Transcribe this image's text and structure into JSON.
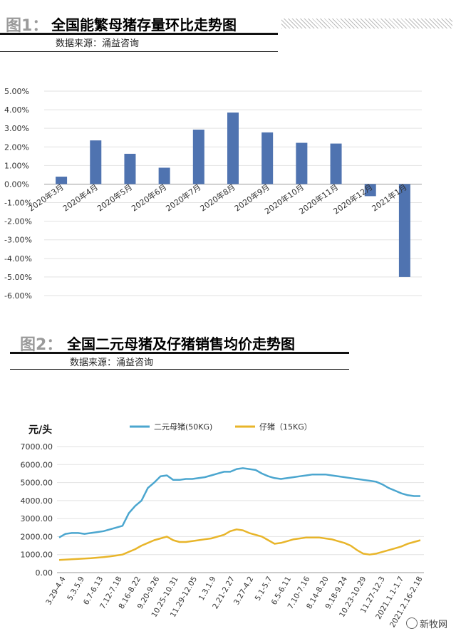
{
  "figure1": {
    "number": "图1：",
    "title": "全国能繁母猪存量环比走势图",
    "source": "数据来源：涌益咨询"
  },
  "figure2": {
    "number": "图2：",
    "title": "全国二元母猪及仔猪销售均价走势图",
    "source": "数据来源：涌益咨询"
  },
  "watermark": "新牧网",
  "chart_data": [
    {
      "type": "bar",
      "categories": [
        "2020年3月",
        "2020年4月",
        "2020年5月",
        "2020年6月",
        "2020年7月",
        "2020年8月",
        "2020年9月",
        "2020年10月",
        "2020年11月",
        "2020年12月",
        "2021年1月"
      ],
      "series": [
        {
          "values": [
            0.4,
            2.35,
            1.63,
            0.88,
            2.93,
            3.85,
            2.78,
            2.22,
            2.18,
            -0.65,
            -5.0
          ]
        }
      ],
      "yticks": [
        "5.00%",
        "4.00%",
        "3.00%",
        "2.00%",
        "1.00%",
        "0.00%",
        "-1.00%",
        "-2.00%",
        "-3.00%",
        "-4.00%",
        "-5.00%",
        "-6.00%"
      ],
      "ylim": [
        -6,
        5
      ],
      "unit": "%",
      "color": "#4f73b0",
      "grid": true
    },
    {
      "type": "line",
      "ylabel": "元/头",
      "ylim": [
        0,
        7000
      ],
      "yticks": [
        "7000.00",
        "6000.00",
        "5000.00",
        "4000.00",
        "3000.00",
        "2000.00",
        "1000.00",
        "0.00"
      ],
      "x_tick_labels": [
        "3.29-4.4",
        "5.3.5.9",
        "6.7-6.13",
        "7.12-7.18",
        "8.16-8.22",
        "9.20-9.26",
        "10.25-10.31",
        "11.29-12.05",
        "1.3.1.9",
        "2.21-2.27",
        "3.27-4.2",
        "5.1-5.7",
        "6.5-6.11",
        "7.10-7.16",
        "8.14-8.20",
        "9.18-9.24",
        "10.23-10.29",
        "11.27-12.3",
        "2021.1.1-1.7",
        "2021.2.16-2.18"
      ],
      "legend_position": "top",
      "grid": true,
      "series": [
        {
          "name": "二元母猪(50KG)",
          "color": "#4ba6cf",
          "values": [
            1950,
            2150,
            2200,
            2200,
            2150,
            2200,
            2250,
            2300,
            2400,
            2500,
            2600,
            3300,
            3700,
            4000,
            4700,
            5000,
            5350,
            5400,
            5150,
            5150,
            5200,
            5200,
            5250,
            5300,
            5400,
            5500,
            5600,
            5600,
            5750,
            5800,
            5750,
            5700,
            5500,
            5350,
            5250,
            5200,
            5250,
            5300,
            5350,
            5400,
            5450,
            5450,
            5450,
            5400,
            5350,
            5300,
            5250,
            5200,
            5150,
            5100,
            5050,
            4900,
            4700,
            4550,
            4400,
            4300,
            4250,
            4250
          ]
        },
        {
          "name": "仔猪（15KG）",
          "color": "#e8b52a",
          "values": [
            700,
            720,
            740,
            760,
            780,
            800,
            830,
            860,
            900,
            950,
            1000,
            1150,
            1300,
            1500,
            1650,
            1800,
            1900,
            2000,
            1800,
            1700,
            1700,
            1750,
            1800,
            1850,
            1900,
            2000,
            2100,
            2300,
            2400,
            2350,
            2200,
            2100,
            2000,
            1800,
            1600,
            1650,
            1750,
            1850,
            1900,
            1950,
            1950,
            1950,
            1900,
            1850,
            1750,
            1650,
            1500,
            1250,
            1050,
            1000,
            1050,
            1150,
            1250,
            1350,
            1450,
            1600,
            1700,
            1800
          ]
        }
      ]
    }
  ]
}
